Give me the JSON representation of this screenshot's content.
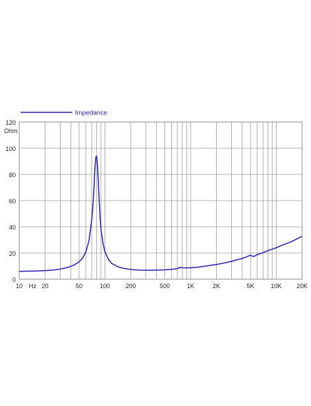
{
  "chart_data": {
    "type": "line",
    "x_scale": "log",
    "xlim": [
      10,
      20000
    ],
    "ylim": [
      0,
      120
    ],
    "y_ticks": [
      0,
      20,
      40,
      60,
      80,
      100,
      120
    ],
    "y_unit": "Ohm",
    "x_tick_labels": [
      {
        "value": 10,
        "label": "10"
      },
      {
        "value": 20,
        "label": "20"
      },
      {
        "value": 50,
        "label": "50"
      },
      {
        "value": 100,
        "label": "100"
      },
      {
        "value": 200,
        "label": "200"
      },
      {
        "value": 500,
        "label": "500"
      },
      {
        "value": 1000,
        "label": "1K"
      },
      {
        "value": 2000,
        "label": "2K"
      },
      {
        "value": 5000,
        "label": "5K"
      },
      {
        "value": 10000,
        "label": "10K"
      },
      {
        "value": 20000,
        "label": "20K"
      }
    ],
    "x_unit": "Hz",
    "grid": true,
    "legend_position": "top-left",
    "series": [
      {
        "name": "Impedance",
        "color": "#2222aa",
        "x": [
          10,
          15,
          20,
          25,
          30,
          35,
          40,
          45,
          50,
          55,
          60,
          65,
          70,
          72,
          74,
          76,
          78,
          80,
          82,
          84,
          86,
          88,
          90,
          95,
          100,
          110,
          120,
          140,
          160,
          200,
          250,
          300,
          400,
          500,
          600,
          700,
          750,
          800,
          900,
          1000,
          1200,
          1500,
          1800,
          2000,
          2500,
          3000,
          3500,
          4000,
          4500,
          5000,
          5200,
          5500,
          6000,
          7000,
          8000,
          10000,
          12000,
          15000,
          18000,
          20000
        ],
        "values": [
          6.0,
          6.2,
          6.5,
          7.0,
          7.7,
          8.6,
          9.8,
          11.3,
          13.3,
          16.2,
          21.0,
          29.0,
          45.0,
          54.0,
          66.0,
          82.0,
          93.0,
          94.0,
          86.0,
          72.0,
          58.0,
          46.0,
          38.0,
          27.0,
          21.0,
          15.0,
          12.0,
          9.6,
          8.4,
          7.4,
          6.9,
          6.8,
          6.9,
          7.1,
          7.5,
          8.0,
          9.0,
          8.7,
          8.6,
          8.7,
          9.1,
          10.0,
          10.8,
          11.2,
          12.4,
          13.6,
          14.8,
          15.8,
          17.0,
          18.4,
          17.6,
          17.4,
          18.8,
          20.2,
          21.8,
          24.0,
          26.2,
          28.6,
          31.2,
          32.6
        ]
      }
    ]
  }
}
